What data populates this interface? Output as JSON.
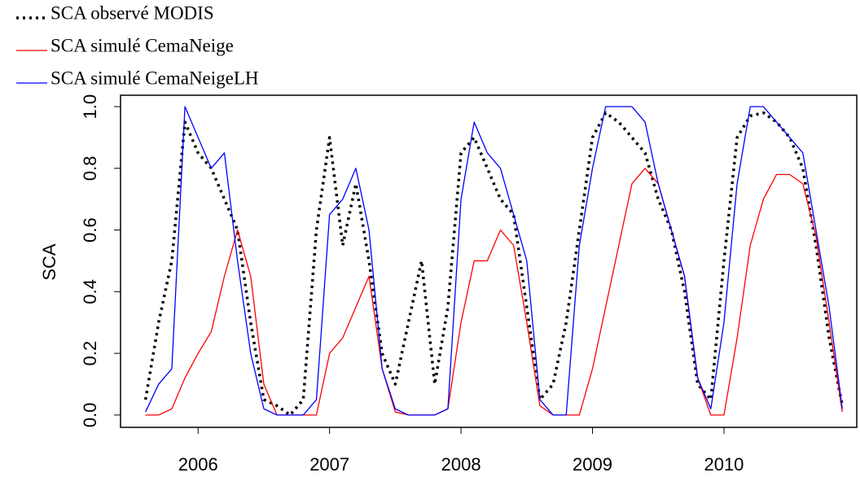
{
  "chart_data": {
    "type": "line",
    "ylabel": "SCA",
    "x": [
      2005.6,
      2005.7,
      2005.8,
      2005.9,
      2006.0,
      2006.1,
      2006.2,
      2006.3,
      2006.4,
      2006.5,
      2006.6,
      2006.7,
      2006.8,
      2006.9,
      2007.0,
      2007.1,
      2007.2,
      2007.3,
      2007.4,
      2007.5,
      2007.6,
      2007.7,
      2007.8,
      2007.9,
      2008.0,
      2008.1,
      2008.2,
      2008.3,
      2008.4,
      2008.5,
      2008.6,
      2008.7,
      2008.8,
      2008.9,
      2009.0,
      2009.1,
      2009.2,
      2009.3,
      2009.4,
      2009.5,
      2009.6,
      2009.7,
      2009.8,
      2009.9,
      2010.0,
      2010.1,
      2010.2,
      2010.3,
      2010.4,
      2010.5,
      2010.6,
      2010.7,
      2010.8,
      2010.9
    ],
    "series": [
      {
        "name": "SCA observé MODIS",
        "color": "#000000",
        "dash": "dotted",
        "values": [
          0.05,
          0.3,
          0.5,
          0.95,
          0.85,
          0.8,
          0.7,
          0.6,
          0.3,
          0.05,
          0.03,
          0.0,
          0.05,
          0.6,
          0.9,
          0.55,
          0.75,
          0.5,
          0.2,
          0.1,
          0.3,
          0.5,
          0.1,
          0.35,
          0.85,
          0.9,
          0.8,
          0.7,
          0.65,
          0.35,
          0.05,
          0.1,
          0.3,
          0.6,
          0.9,
          0.98,
          0.95,
          0.9,
          0.85,
          0.7,
          0.6,
          0.4,
          0.1,
          0.05,
          0.5,
          0.9,
          0.97,
          0.98,
          0.95,
          0.9,
          0.8,
          0.55,
          0.25,
          0.03
        ]
      },
      {
        "name": "SCA simulé CemaNeige",
        "color": "#ff0000",
        "dash": "solid",
        "values": [
          0,
          0,
          0.02,
          0.12,
          0.2,
          0.27,
          0.45,
          0.6,
          0.45,
          0.1,
          0,
          0,
          0,
          0,
          0.2,
          0.25,
          0.35,
          0.45,
          0.15,
          0.01,
          0,
          0,
          0,
          0.02,
          0.3,
          0.5,
          0.5,
          0.6,
          0.55,
          0.3,
          0.03,
          0,
          0,
          0,
          0.15,
          0.35,
          0.55,
          0.75,
          0.8,
          0.75,
          0.6,
          0.45,
          0.12,
          0,
          0,
          0.25,
          0.55,
          0.7,
          0.78,
          0.78,
          0.75,
          0.58,
          0.3,
          0.01
        ]
      },
      {
        "name": "SCA simulé CemaNeigeLH",
        "color": "#0000ff",
        "dash": "solid",
        "values": [
          0.01,
          0.1,
          0.15,
          1.0,
          0.9,
          0.8,
          0.85,
          0.5,
          0.2,
          0.02,
          0,
          0,
          0,
          0.05,
          0.65,
          0.7,
          0.8,
          0.6,
          0.15,
          0.02,
          0,
          0,
          0,
          0.02,
          0.7,
          0.95,
          0.85,
          0.8,
          0.65,
          0.5,
          0.05,
          0,
          0,
          0.55,
          0.8,
          1.0,
          1.0,
          1.0,
          0.95,
          0.75,
          0.6,
          0.45,
          0.12,
          0.02,
          0.3,
          0.75,
          1.0,
          1.0,
          0.95,
          0.9,
          0.85,
          0.6,
          0.35,
          0.02
        ]
      }
    ],
    "xlim": [
      2005.41,
      2011.01
    ],
    "xticks": [
      2006,
      2007,
      2008,
      2009,
      2010
    ],
    "ylim": [
      -0.04,
      1.037
    ],
    "yticks": [
      {
        "value": 0,
        "label": "0.0"
      },
      0.2,
      0.4,
      0.6,
      0.8,
      {
        "value": 1,
        "label": "1.0"
      }
    ]
  }
}
